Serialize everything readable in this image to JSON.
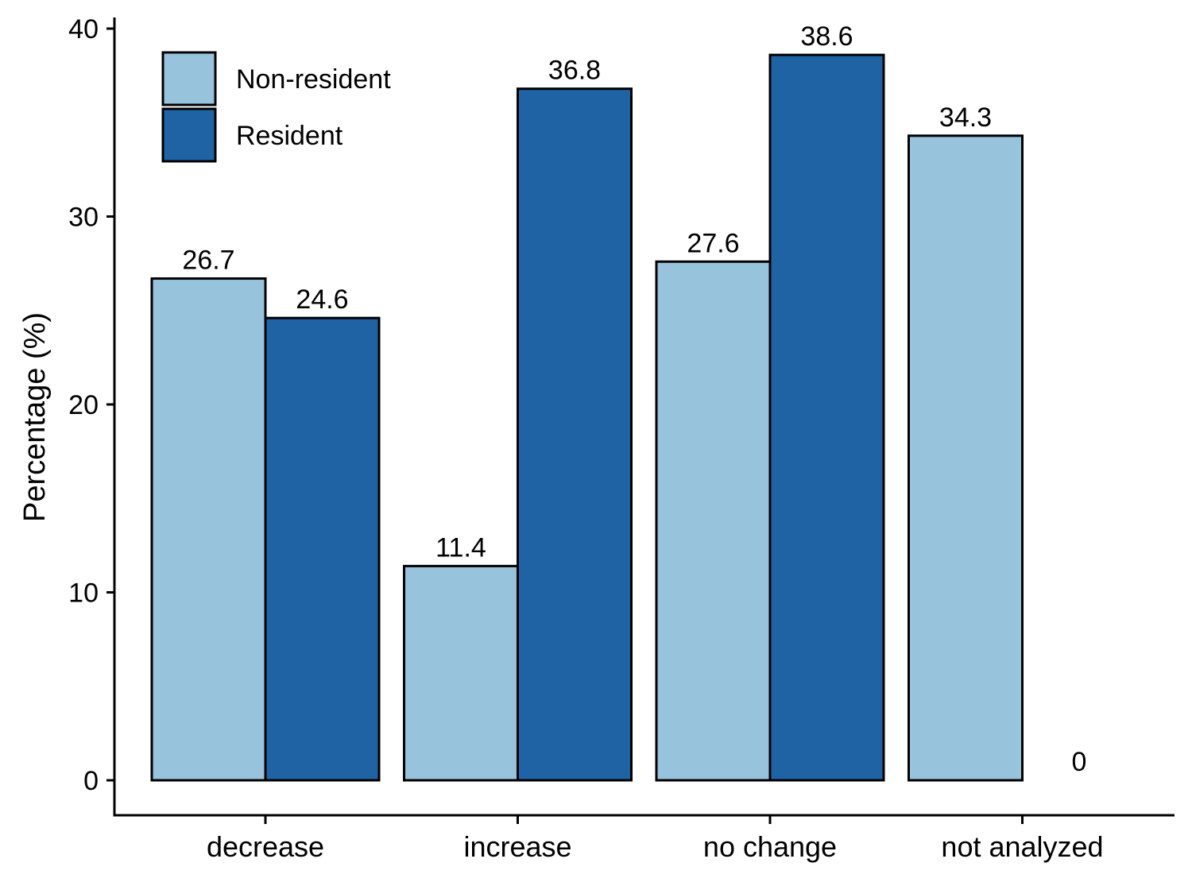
{
  "chart_data": {
    "type": "bar",
    "title": "",
    "xlabel": "",
    "ylabel": "Percentage (%)",
    "ylim": [
      0,
      40
    ],
    "yticks": [
      0,
      10,
      20,
      30,
      40
    ],
    "grid": false,
    "legend_position": "top-left",
    "categories": [
      "decrease",
      "increase",
      "no change",
      "not analyzed"
    ],
    "series": [
      {
        "name": "Non-resident",
        "color": "#97c3dc",
        "values": [
          26.7,
          11.4,
          27.6,
          34.3
        ]
      },
      {
        "name": "Resident",
        "color": "#1f63a5",
        "values": [
          24.6,
          36.8,
          38.6,
          0
        ]
      }
    ]
  }
}
